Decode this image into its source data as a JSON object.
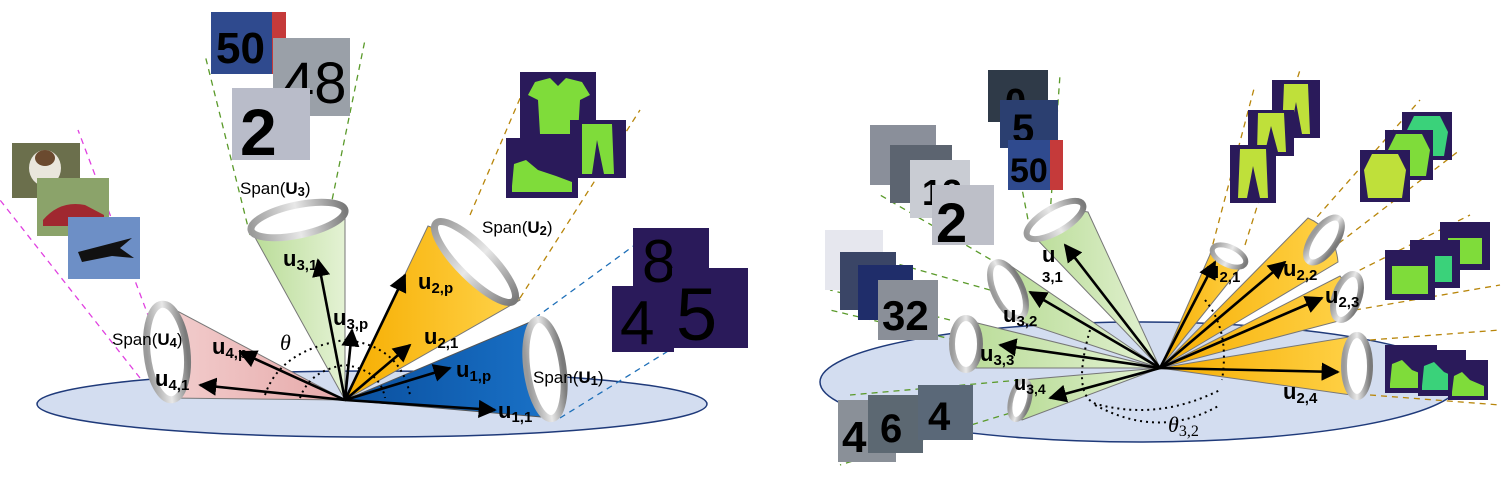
{
  "left_diagram": {
    "span_labels": {
      "u1": {
        "prefix": "Span(",
        "vec": "U",
        "sub": "1",
        "suffix": ")"
      },
      "u2": {
        "prefix": "Span(",
        "vec": "U",
        "sub": "2",
        "suffix": ")"
      },
      "u3": {
        "prefix": "Span(",
        "vec": "U",
        "sub": "3",
        "suffix": ")"
      },
      "u4": {
        "prefix": "Span(",
        "vec": "U",
        "sub": "4",
        "suffix": ")"
      }
    },
    "vectors": {
      "u11": {
        "base": "u",
        "sub": "1,1"
      },
      "u1p": {
        "base": "u",
        "sub": "1,p"
      },
      "u21": {
        "base": "u",
        "sub": "2,1"
      },
      "u2p": {
        "base": "u",
        "sub": "2,p"
      },
      "u31": {
        "base": "u",
        "sub": "3,1"
      },
      "u3p": {
        "base": "u",
        "sub": "3,p"
      },
      "u41": {
        "base": "u",
        "sub": "4,1"
      },
      "u4p": {
        "base": "u",
        "sub": "4,p"
      }
    },
    "theta": "θ",
    "image_digits": {
      "svhn_a": "50",
      "svhn_b": "48",
      "svhn_c": "2",
      "mnist_a": "8",
      "mnist_b": "4",
      "mnist_c": "5"
    }
  },
  "right_diagram": {
    "vectors": {
      "u21": {
        "base": "u",
        "sub": "2,1"
      },
      "u22": {
        "base": "u",
        "sub": "2,2"
      },
      "u23": {
        "base": "u",
        "sub": "2,3"
      },
      "u24": {
        "base": "u",
        "sub": "2,4"
      },
      "u31": {
        "base": "u",
        "sub": "3,1"
      },
      "u32": {
        "base": "u",
        "sub": "3,2"
      },
      "u33": {
        "base": "u",
        "sub": "3,3"
      },
      "u34": {
        "base": "u",
        "sub": "3,4"
      }
    },
    "theta": {
      "base": "θ",
      "sub": "3,2"
    },
    "image_digits": {
      "svhn_a": "0",
      "svhn_b": "5",
      "svhn_c": "50",
      "svhn_d": "12",
      "svhn_e": "2",
      "svhn_f": "32",
      "svhn_g": "4",
      "svhn_h": "6",
      "svhn_i": "4"
    }
  },
  "colors": {
    "cone_u1": "#0a5fb4",
    "cone_u2": "#f7b500",
    "cone_u3": "#c6e3a8",
    "cone_u4": "#efc1c1",
    "plane_fill": "#d0dcf0",
    "plane_stroke": "#1f3a7a",
    "dash_magenta": "#e040e0",
    "dash_green": "#5a9a2a",
    "dash_orange": "#b8860b",
    "dash_blue": "#1e6fb8",
    "fashion_bg": "#2a1a5a",
    "fashion_fg": "#7fdc3a"
  }
}
